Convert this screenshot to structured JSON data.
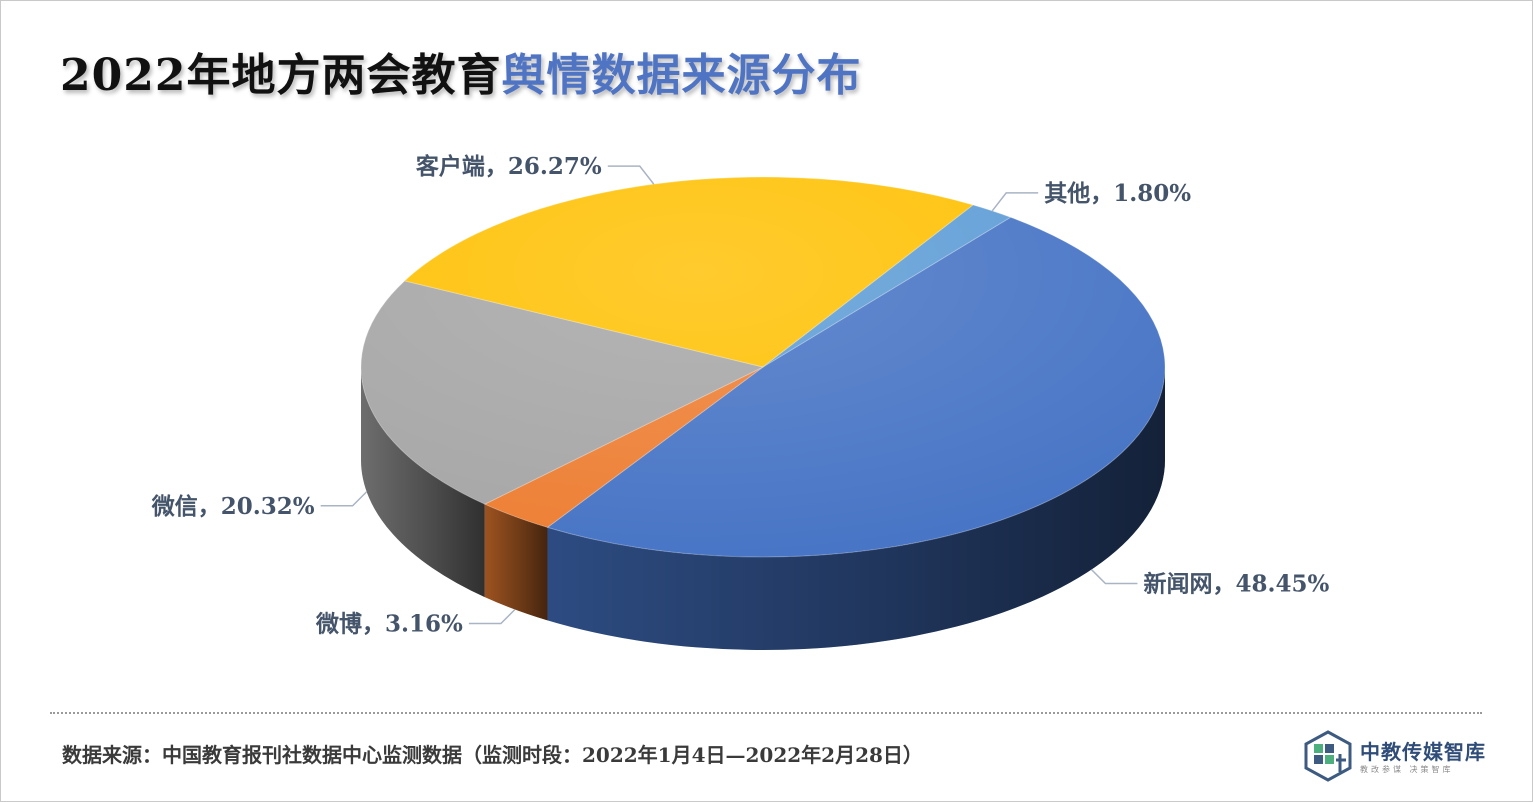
{
  "title": {
    "part1": "2022年地方两会教育",
    "part2": "舆情数据来源分布"
  },
  "chart_data": {
    "type": "pie",
    "style": "3d",
    "title": "2022年地方两会教育舆情数据来源分布",
    "slices": [
      {
        "name": "新闻网",
        "value": 48.45,
        "label": "新闻网，48.45%",
        "color": "#4472c4"
      },
      {
        "name": "微博",
        "value": 3.16,
        "label": "微博，3.16%",
        "color": "#ed7d31"
      },
      {
        "name": "微信",
        "value": 20.32,
        "label": "微信，20.32%",
        "color": "#a5a5a5"
      },
      {
        "name": "客户端",
        "value": 26.27,
        "label": "客户端，26.27%",
        "color": "#ffc000"
      },
      {
        "name": "其他",
        "value": 1.8,
        "label": "其他，1.80%",
        "color": "#5b9bd5"
      }
    ],
    "legend": "none"
  },
  "source_note": "数据来源：中国教育报刊社数据中心监测数据（监测时段：2022年1月4日—2022年2月28日）",
  "logo": {
    "name": "中教传媒智库",
    "slogan": "教改参谋 决策智库"
  }
}
